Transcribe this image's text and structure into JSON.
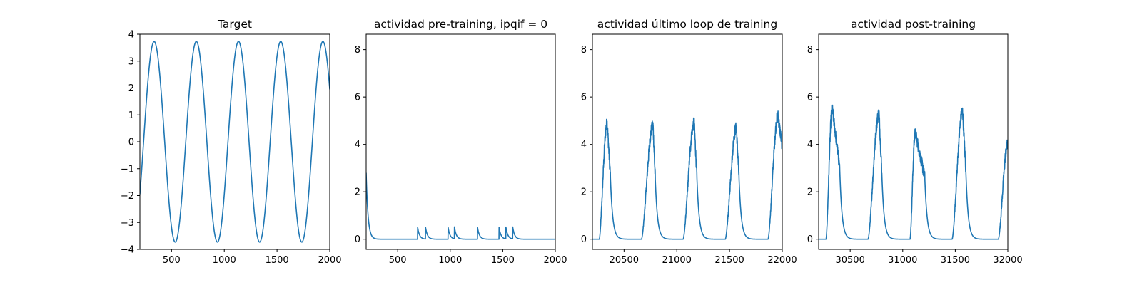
{
  "figure": {
    "line_color": "#1f77b4",
    "background": "#ffffff"
  },
  "chart_data": [
    {
      "type": "line",
      "title": "Target",
      "xlabel": "",
      "ylabel": "",
      "xlim": [
        200,
        2000
      ],
      "ylim": [
        -4,
        4
      ],
      "xticks": [
        500,
        1000,
        1500,
        2000
      ],
      "xtick_labels": [
        "500",
        "1000",
        "1500",
        "2000"
      ],
      "yticks": [
        -4,
        -3,
        -2,
        -1,
        0,
        1,
        2,
        3,
        4
      ],
      "ytick_labels": [
        "−4",
        "−3",
        "−2",
        "−1",
        "0",
        "1",
        "2",
        "3",
        "4"
      ],
      "series": [
        {
          "name": "target",
          "kind": "sine",
          "amplitude": 3.73,
          "period": 400,
          "peak_at": 335,
          "x_start": 200,
          "x_end": 2000
        }
      ]
    },
    {
      "type": "line",
      "title": "actividad pre-training, ipqif = 0",
      "xlabel": "",
      "ylabel": "",
      "xlim": [
        200,
        2000
      ],
      "ylim": [
        -0.43,
        8.65
      ],
      "xticks": [
        500,
        1000,
        1500,
        2000
      ],
      "xtick_labels": [
        "500",
        "1000",
        "1500",
        "2000"
      ],
      "yticks": [
        0,
        2,
        4,
        6,
        8
      ],
      "ytick_labels": [
        "0",
        "2",
        "4",
        "6",
        "8"
      ],
      "series": [
        {
          "name": "activity",
          "kind": "spikes",
          "x_start": 200,
          "x_end": 2000,
          "initial_value": 2.8,
          "decay_tau": 18,
          "spike_times": [
            690,
            765,
            980,
            1040,
            1260,
            1465,
            1530,
            1595
          ],
          "spike_heights": [
            0.5,
            0.5,
            0.5,
            0.5,
            0.5,
            0.5,
            0.5,
            0.5
          ]
        }
      ]
    },
    {
      "type": "line",
      "title": "actividad último loop de training",
      "xlabel": "",
      "ylabel": "",
      "xlim": [
        20200,
        22000
      ],
      "ylim": [
        -0.43,
        8.65
      ],
      "xticks": [
        20500,
        21000,
        21500,
        22000
      ],
      "xtick_labels": [
        "20500",
        "21000",
        "21500",
        "22000"
      ],
      "yticks": [
        0,
        2,
        4,
        6,
        8
      ],
      "ytick_labels": [
        "0",
        "2",
        "4",
        "6",
        "8"
      ],
      "series": [
        {
          "name": "activity",
          "kind": "bursts",
          "x_start": 20200,
          "x_end": 22000,
          "bursts": [
            {
              "start": 20265,
              "peak_at": 20340,
              "peak": 4.9,
              "end": 20370
            },
            {
              "start": 20665,
              "peak_at": 20775,
              "peak": 4.8,
              "end": 20795
            },
            {
              "start": 21060,
              "peak_at": 21165,
              "peak": 4.9,
              "end": 21190
            },
            {
              "start": 21460,
              "peak_at": 21565,
              "peak": 4.7,
              "end": 21590
            },
            {
              "start": 21865,
              "peak_at": 21960,
              "peak": 5.2,
              "end": 22000,
              "end_value": 3.9
            }
          ],
          "decay_tau": 22,
          "noise": 0.25
        }
      ]
    },
    {
      "type": "line",
      "title": "actividad post-training",
      "xlabel": "",
      "ylabel": "",
      "xlim": [
        30200,
        32000
      ],
      "ylim": [
        -0.43,
        8.65
      ],
      "xticks": [
        30500,
        31000,
        31500,
        32000
      ],
      "xtick_labels": [
        "30500",
        "31000",
        "31500",
        "32000"
      ],
      "yticks": [
        0,
        2,
        4,
        6,
        8
      ],
      "ytick_labels": [
        "0",
        "2",
        "4",
        "6",
        "8"
      ],
      "series": [
        {
          "name": "activity",
          "kind": "bursts",
          "x_start": 30200,
          "x_end": 32000,
          "bursts": [
            {
              "start": 30270,
              "peak_at": 30330,
              "peak": 5.5,
              "end": 30400
            },
            {
              "start": 30670,
              "peak_at": 30775,
              "peak": 5.3,
              "end": 30800
            },
            {
              "start": 31070,
              "peak_at": 31120,
              "peak": 4.5,
              "end": 31210,
              "tail_value": 2.6
            },
            {
              "start": 31470,
              "peak_at": 31570,
              "peak": 5.4,
              "end": 31600
            },
            {
              "start": 31910,
              "peak_at": 32000,
              "peak": 4.0,
              "end": 32000,
              "end_value": 3.4
            }
          ],
          "decay_tau": 22,
          "noise": 0.25
        }
      ]
    }
  ]
}
